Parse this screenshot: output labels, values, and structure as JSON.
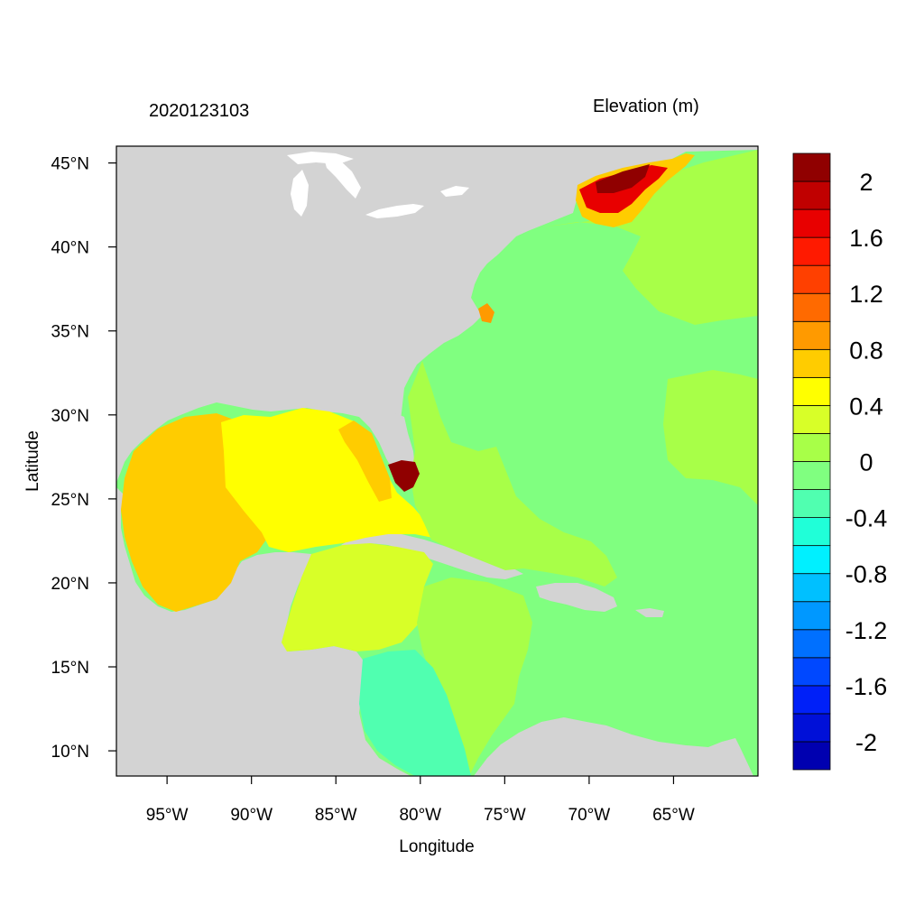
{
  "header": {
    "date": "2020123103",
    "title": "Elevation (m)"
  },
  "axes": {
    "xlabel": "Longitude",
    "ylabel": "Latitude",
    "x_ticks": [
      {
        "value": -95,
        "label": "95°W"
      },
      {
        "value": -90,
        "label": "90°W"
      },
      {
        "value": -85,
        "label": "85°W"
      },
      {
        "value": -80,
        "label": "80°W"
      },
      {
        "value": -75,
        "label": "75°W"
      },
      {
        "value": -70,
        "label": "70°W"
      },
      {
        "value": -65,
        "label": "65°W"
      }
    ],
    "y_ticks": [
      {
        "value": 45,
        "label": "45°N"
      },
      {
        "value": 40,
        "label": "40°N"
      },
      {
        "value": 35,
        "label": "35°N"
      },
      {
        "value": 30,
        "label": "30°N"
      },
      {
        "value": 25,
        "label": "25°N"
      },
      {
        "value": 20,
        "label": "20°N"
      },
      {
        "value": 15,
        "label": "15°N"
      },
      {
        "value": 10,
        "label": "10°N"
      }
    ],
    "lon_range": [
      -98,
      -60
    ],
    "lat_range": [
      8.5,
      46
    ]
  },
  "colorbar": {
    "colors": [
      "#0000b0",
      "#0010d8",
      "#0020f8",
      "#0048ff",
      "#0070ff",
      "#0098ff",
      "#00c0ff",
      "#00f0ff",
      "#20ffd8",
      "#50ffb0",
      "#80ff80",
      "#a8ff48",
      "#d8ff28",
      "#ffff00",
      "#ffcc00",
      "#ff9a00",
      "#ff6a00",
      "#ff4000",
      "#ff1a00",
      "#e80000",
      "#c00000",
      "#900000"
    ],
    "labels": [
      "-2",
      "-1.6",
      "-1.2",
      "-0.8",
      "-0.4",
      "0",
      "0.4",
      "0.8",
      "1.2",
      "1.6",
      "2"
    ]
  },
  "colors": {
    "land": "#d3d3d3",
    "lakes": "#ffffff",
    "gulf_deep": "#ffcc00",
    "gulf_mid": "#ffff00",
    "caribbean_west": "#d8ff28",
    "atlantic_shelf": "#a8ff48",
    "atlantic_deep": "#80ff80",
    "caribbean_south": "#50ffb0",
    "surge_max": "#900000"
  }
}
